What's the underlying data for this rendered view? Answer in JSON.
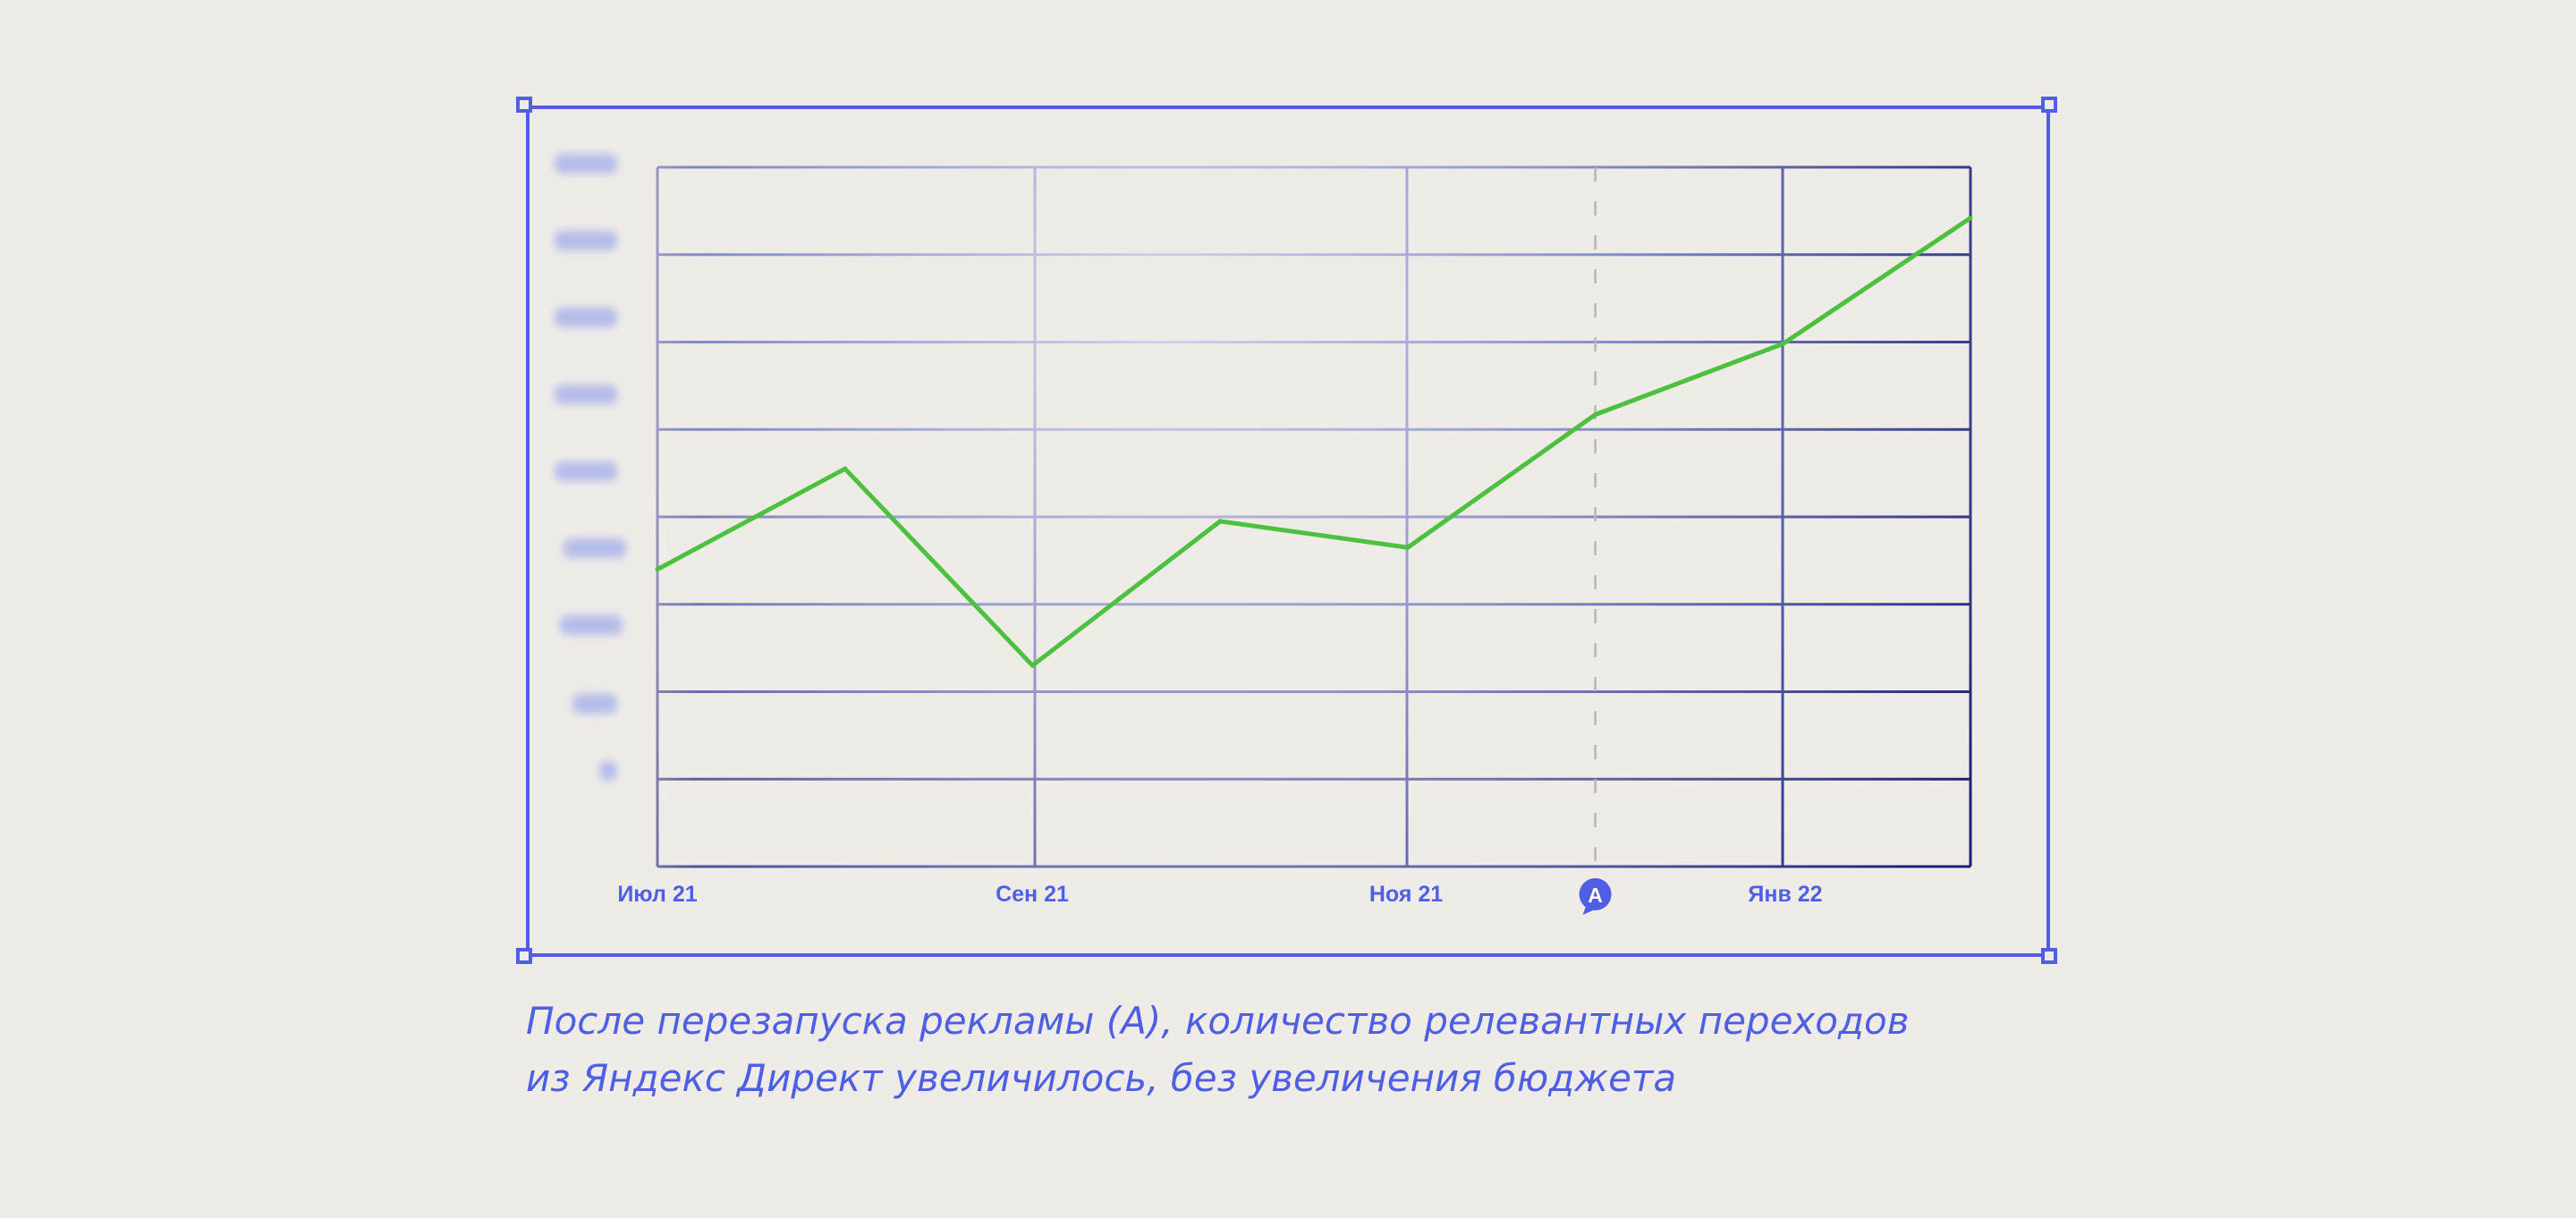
{
  "colors": {
    "accent": "#4f5fe3",
    "line": "#4cc13f",
    "grid_dark": "#1c2378",
    "grid_light": "#c6c9e8",
    "background": "#efece8"
  },
  "chart_data": {
    "type": "line",
    "x_tick_labels": [
      "Июл 21",
      "Сен 21",
      "Ноя 21",
      "Янв 22"
    ],
    "x": [
      0,
      1,
      2,
      3,
      4,
      5,
      6,
      7
    ],
    "series": [
      {
        "values": [
          3.4,
          4.55,
          2.3,
          3.95,
          3.65,
          5.17,
          5.98,
          7.42
        ]
      }
    ],
    "ylim": [
      0,
      8
    ],
    "y_tick_labels_blurred": true,
    "grid": true,
    "annotation": {
      "label": "A",
      "x": 5,
      "style": "dashed-vertical-line"
    }
  },
  "caption": {
    "line1": "После перезапуска рекламы (А), количество релевантных переходов",
    "line2": "из Яндекс Директ увеличилось, без увеличения бюджета"
  }
}
